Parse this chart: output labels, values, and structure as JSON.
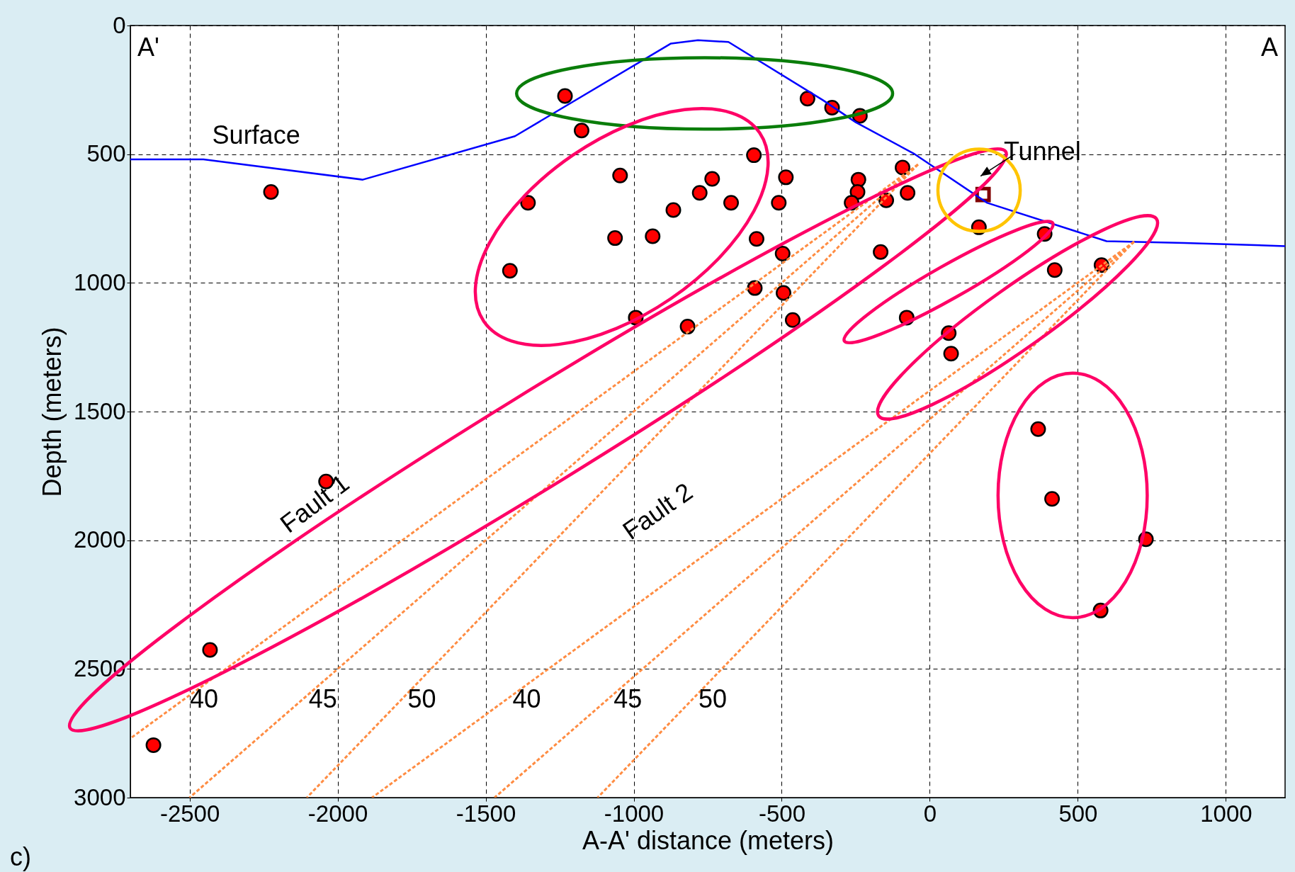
{
  "chart_data": {
    "type": "scatter",
    "xlabel": "A-A' distance (meters)",
    "ylabel": "Depth (meters)",
    "xlim": [
      -2700,
      1200
    ],
    "xticks": [
      -2500,
      -2000,
      -1500,
      -1000,
      -500,
      0,
      500,
      1000
    ],
    "ylim": [
      3000,
      0
    ],
    "yticks": [
      0,
      500,
      1000,
      1500,
      2000,
      2500,
      3000
    ],
    "grid": true,
    "series": [
      {
        "marker": "circle",
        "color": "#ff0000",
        "x": [
          -1232,
          -1176,
          -413,
          -330,
          -236,
          -2225,
          -594,
          -1357,
          -1046,
          -735,
          -486,
          -777,
          -866,
          -671,
          -510,
          -1063,
          -936,
          -585,
          -497,
          -1418,
          -591,
          -494,
          -463,
          -993,
          -818,
          -241,
          -244,
          -264,
          -147,
          -92,
          -75,
          -166,
          -78,
          64,
          72,
          166,
          388,
          422,
          580,
          366,
          413,
          730,
          577,
          -2039,
          -2431,
          -2622
        ],
        "values": [
          274,
          408,
          284,
          319,
          351,
          647,
          504,
          689,
          583,
          596,
          590,
          650,
          717,
          689,
          689,
          826,
          819,
          829,
          886,
          953,
          1020,
          1039,
          1144,
          1135,
          1170,
          599,
          647,
          689,
          679,
          552,
          650,
          880,
          1135,
          1195,
          1275,
          784,
          810,
          950,
          931,
          1568,
          1839,
          1996,
          2273,
          1772,
          2426,
          2796
        ]
      },
      {
        "name": "Tunnel",
        "marker": "square",
        "color": "#800000",
        "x": [
          180
        ],
        "values": [
          657
        ]
      },
      {
        "name": "Surface",
        "type": "line",
        "color": "#0000ff",
        "line_style": "solid",
        "x": [
          -2700,
          -2453,
          -1915,
          -1401,
          -874,
          -783,
          -680,
          -361,
          -250,
          -55,
          194,
          597,
          860,
          1200
        ],
        "values": [
          520,
          520,
          599,
          430,
          70,
          57,
          64,
          290,
          376,
          497,
          689,
          838,
          845,
          857
        ]
      },
      {
        "name": "40",
        "type": "line",
        "color": "#ff8c42",
        "line_style": "dashed",
        "x": [
          -40,
          -2700
        ],
        "values": [
          540,
          2770
        ]
      },
      {
        "name": "45",
        "type": "line",
        "color": "#ff8c42",
        "line_style": "dashed",
        "x": [
          -40,
          -2500
        ],
        "values": [
          540,
          3000
        ]
      },
      {
        "name": "50",
        "type": "line",
        "color": "#ff8c42",
        "line_style": "dashed",
        "x": [
          -40,
          -2104
        ],
        "values": [
          540,
          3000
        ]
      },
      {
        "name": "40",
        "type": "line",
        "color": "#ff8c42",
        "line_style": "dashed",
        "x": [
          690,
          -1884
        ],
        "values": [
          840,
          3000
        ]
      },
      {
        "name": "45",
        "type": "line",
        "color": "#ff8c42",
        "line_style": "dashed",
        "x": [
          690,
          -1470
        ],
        "values": [
          840,
          3000
        ]
      },
      {
        "name": "50",
        "type": "line",
        "color": "#ff8c42",
        "line_style": "dashed",
        "x": [
          690,
          -1122
        ],
        "values": [
          840,
          3000
        ]
      }
    ],
    "annotations": [
      "Fault 1",
      "Fault 2",
      "A'",
      "A",
      "c)"
    ]
  }
}
